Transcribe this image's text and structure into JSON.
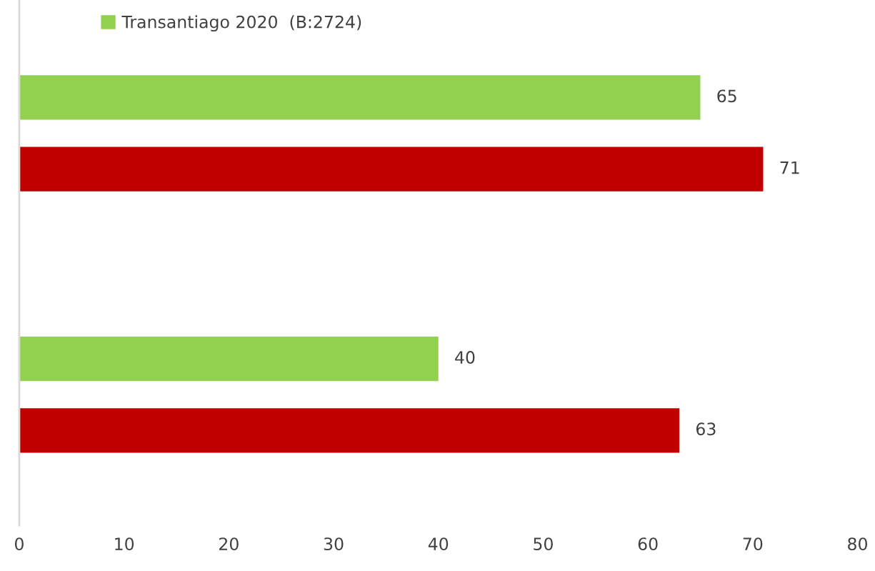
{
  "chart_data": {
    "type": "bar",
    "orientation": "horizontal",
    "categories": [
      null,
      null
    ],
    "series": [
      {
        "name": "Transantiago 2020  (B:2724)",
        "color": "#92d050",
        "values": [
          65,
          40
        ]
      },
      {
        "color": "#c00000",
        "values": [
          71,
          63
        ]
      }
    ],
    "xlim": [
      0,
      80
    ],
    "xticks": [
      0,
      10,
      20,
      30,
      40,
      50,
      60,
      70,
      80
    ],
    "data_labels": true,
    "grid": false,
    "legend": "top left"
  }
}
